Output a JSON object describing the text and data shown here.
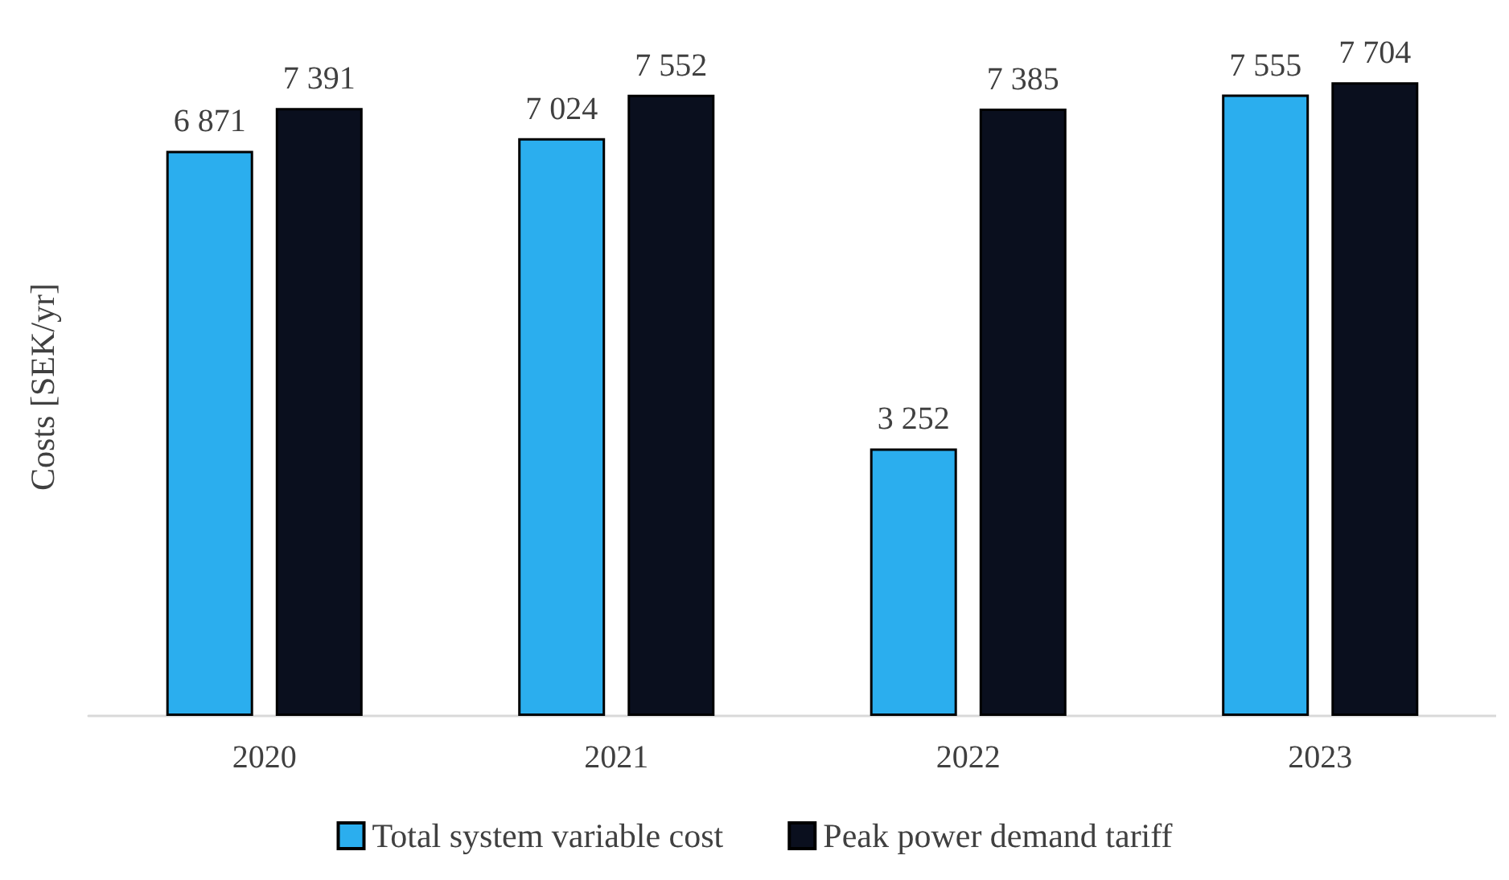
{
  "chart_data": {
    "type": "bar",
    "ylabel": "Costs [SEK/yr]",
    "categories": [
      "2020",
      "2021",
      "2022",
      "2023"
    ],
    "series": [
      {
        "name": "Total system variable cost",
        "color": "#2baeee",
        "values": [
          6871,
          7024,
          3252,
          7555
        ],
        "value_labels": [
          "6 871",
          "7 024",
          "3 252",
          "7 555"
        ]
      },
      {
        "name": "Peak power demand tariff",
        "color": "#0a0f1e",
        "values": [
          7391,
          7552,
          7385,
          7704
        ],
        "value_labels": [
          "7 391",
          "7 552",
          "7 385",
          "7 704"
        ]
      }
    ],
    "grid": false,
    "legend": "bottom"
  }
}
